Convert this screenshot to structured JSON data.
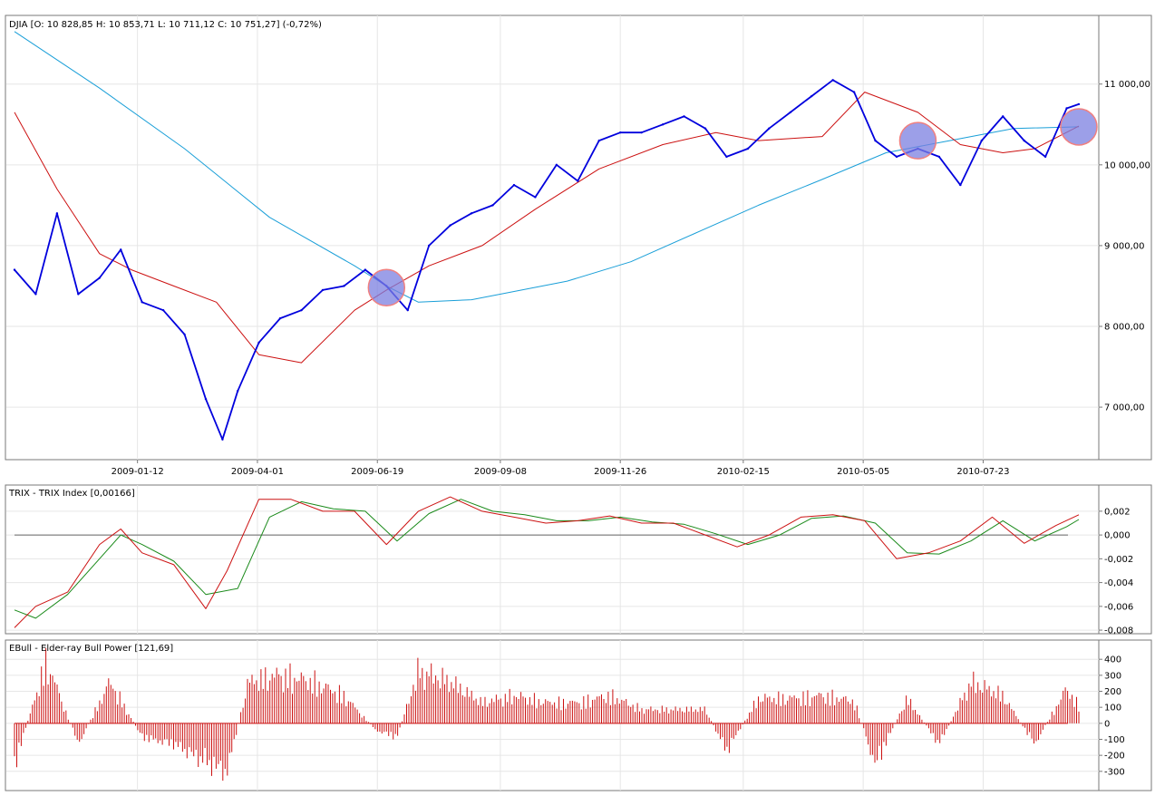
{
  "chart_data": [
    {
      "type": "line",
      "subtype": "candlestick",
      "title": "DJIA [O: 10 828,85  H: 10 853,71  L: 10 711,12  C: 10 751,27] (-0,72%)",
      "x_tick_labels": [
        "2009-01-12",
        "2009-04-01",
        "2009-06-19",
        "2009-09-08",
        "2009-11-26",
        "2010-02-15",
        "2010-05-05",
        "2010-07-23"
      ],
      "y_tick_labels": [
        "7 000,00",
        "8 000,00",
        "9 000,00",
        "10 000,00",
        "11 000,00"
      ],
      "y_ticks": [
        7000,
        8000,
        9000,
        10000,
        11000
      ],
      "ylim": [
        6350,
        11850
      ],
      "xlim": [
        "2008-10-23",
        "2010-09-30"
      ],
      "grid": true,
      "colors": {
        "price": "#0000dd",
        "ma_slow": "#1a9fd8",
        "ma_fast": "#cc1111",
        "highlight": "#7b7fe0"
      },
      "series": [
        {
          "role": "price",
          "x": [
            "2008-10-23",
            "2008-11-06",
            "2008-11-20",
            "2008-12-04",
            "2008-12-18",
            "2009-01-01",
            "2009-01-15",
            "2009-01-29",
            "2009-02-12",
            "2009-02-26",
            "2009-03-09",
            "2009-03-19",
            "2009-04-02",
            "2009-04-16",
            "2009-04-30",
            "2009-05-14",
            "2009-05-28",
            "2009-06-11",
            "2009-06-25",
            "2009-07-09",
            "2009-07-23",
            "2009-08-06",
            "2009-08-20",
            "2009-09-03",
            "2009-09-17",
            "2009-10-01",
            "2009-10-15",
            "2009-10-29",
            "2009-11-12",
            "2009-11-26",
            "2009-12-10",
            "2009-12-24",
            "2010-01-07",
            "2010-01-21",
            "2010-02-04",
            "2010-02-18",
            "2010-03-04",
            "2010-03-18",
            "2010-04-01",
            "2010-04-15",
            "2010-04-29",
            "2010-05-13",
            "2010-05-27",
            "2010-06-10",
            "2010-06-24",
            "2010-07-08",
            "2010-07-22",
            "2010-08-05",
            "2010-08-19",
            "2010-09-02",
            "2010-09-16",
            "2010-09-24"
          ],
          "values": [
            8700,
            8400,
            9400,
            8400,
            8600,
            8950,
            8300,
            8200,
            7900,
            7100,
            6600,
            7200,
            7800,
            8100,
            8200,
            8450,
            8500,
            8700,
            8500,
            8200,
            9000,
            9250,
            9400,
            9500,
            9750,
            9600,
            10000,
            9800,
            10300,
            10400,
            10400,
            10500,
            10600,
            10450,
            10100,
            10200,
            10450,
            10650,
            10850,
            11050,
            10900,
            10300,
            10100,
            10200,
            10100,
            9750,
            10300,
            10600,
            10300,
            10100,
            10700,
            10751
          ]
        },
        {
          "role": "ma_slow",
          "x": [
            "2008-10-23",
            "2008-12-18",
            "2009-02-12",
            "2009-04-09",
            "2009-06-04",
            "2009-06-25",
            "2009-07-16",
            "2009-08-20",
            "2009-10-22",
            "2009-12-03",
            "2010-01-14",
            "2010-02-25",
            "2010-04-08",
            "2010-05-20",
            "2010-07-01",
            "2010-08-12",
            "2010-09-24"
          ],
          "values": [
            11650,
            10950,
            10200,
            9350,
            8750,
            8500,
            8300,
            8330,
            8560,
            8800,
            9150,
            9500,
            9820,
            10150,
            10300,
            10450,
            10470
          ]
        },
        {
          "role": "ma_fast",
          "x": [
            "2008-10-23",
            "2008-11-20",
            "2008-12-18",
            "2009-01-08",
            "2009-02-05",
            "2009-03-05",
            "2009-04-02",
            "2009-04-30",
            "2009-06-04",
            "2009-06-25",
            "2009-07-23",
            "2009-08-27",
            "2009-10-01",
            "2009-11-12",
            "2009-12-24",
            "2010-01-28",
            "2010-02-25",
            "2010-04-08",
            "2010-05-06",
            "2010-06-10",
            "2010-07-08",
            "2010-08-05",
            "2010-08-26",
            "2010-09-24"
          ],
          "values": [
            10650,
            9700,
            8900,
            8700,
            8500,
            8300,
            7650,
            7550,
            8200,
            8450,
            8750,
            9000,
            9450,
            9950,
            10250,
            10400,
            10300,
            10350,
            10900,
            10650,
            10250,
            10150,
            10200,
            10480
          ]
        }
      ]
    },
    {
      "type": "line",
      "title": "TRIX - TRIX Index [0,00166]",
      "y_tick_labels": [
        "-0,008",
        "-0,006",
        "-0,004",
        "-0,002",
        "0,000",
        "0,002"
      ],
      "y_ticks": [
        -0.008,
        -0.006,
        -0.004,
        -0.002,
        0.0,
        0.002
      ],
      "ylim": [
        -0.0083,
        0.0042
      ],
      "zero_line": 0.0,
      "colors": {
        "trix": "#cc1111",
        "signal": "#1a8a1a",
        "zero": "#666666"
      },
      "series": [
        {
          "role": "trix",
          "x": [
            "2008-10-23",
            "2008-11-06",
            "2008-11-27",
            "2008-12-18",
            "2009-01-01",
            "2009-01-15",
            "2009-02-05",
            "2009-02-26",
            "2009-03-12",
            "2009-04-02",
            "2009-04-23",
            "2009-05-14",
            "2009-06-04",
            "2009-06-25",
            "2009-07-16",
            "2009-08-06",
            "2009-08-27",
            "2009-09-17",
            "2009-10-08",
            "2009-10-29",
            "2009-11-19",
            "2009-12-10",
            "2009-12-31",
            "2010-01-21",
            "2010-02-11",
            "2010-03-04",
            "2010-03-25",
            "2010-04-15",
            "2010-05-06",
            "2010-05-27",
            "2010-06-17",
            "2010-07-08",
            "2010-07-29",
            "2010-08-19",
            "2010-09-09",
            "2010-09-24"
          ],
          "values": [
            -0.0078,
            -0.006,
            -0.0048,
            -0.0008,
            0.0005,
            -0.0015,
            -0.0025,
            -0.0062,
            -0.003,
            0.003,
            0.003,
            0.002,
            0.002,
            -0.0008,
            0.002,
            0.0032,
            0.002,
            0.0015,
            0.001,
            0.0012,
            0.0016,
            0.001,
            0.001,
            0.0,
            -0.001,
            0.0,
            0.0015,
            0.0017,
            0.0012,
            -0.002,
            -0.0015,
            -0.0005,
            0.0015,
            -0.0007,
            0.0008,
            0.0017
          ]
        },
        {
          "role": "signal",
          "x": [
            "2008-10-23",
            "2008-11-06",
            "2008-11-27",
            "2008-12-18",
            "2009-01-01",
            "2009-01-15",
            "2009-02-05",
            "2009-02-26",
            "2009-03-19",
            "2009-04-09",
            "2009-04-30",
            "2009-05-21",
            "2009-06-11",
            "2009-07-02",
            "2009-07-23",
            "2009-08-13",
            "2009-09-03",
            "2009-09-24",
            "2009-10-15",
            "2009-11-05",
            "2009-11-26",
            "2009-12-17",
            "2010-01-07",
            "2010-01-28",
            "2010-02-18",
            "2010-03-11",
            "2010-04-01",
            "2010-04-22",
            "2010-05-13",
            "2010-06-03",
            "2010-06-24",
            "2010-07-15",
            "2010-08-05",
            "2010-08-26",
            "2010-09-16",
            "2010-09-24"
          ],
          "values": [
            -0.0063,
            -0.007,
            -0.005,
            -0.002,
            0.0,
            -0.0008,
            -0.0022,
            -0.005,
            -0.0045,
            0.0015,
            0.0028,
            0.0022,
            0.002,
            -0.0005,
            0.0018,
            0.003,
            0.002,
            0.0017,
            0.0012,
            0.0012,
            0.0015,
            0.0011,
            0.0009,
            0.0001,
            -0.0008,
            0.0,
            0.0014,
            0.0016,
            0.001,
            -0.0015,
            -0.0016,
            -0.0005,
            0.0012,
            -0.0005,
            0.0007,
            0.0013
          ]
        }
      ]
    },
    {
      "type": "bar",
      "title": "EBull - Elder-ray Bull Power [121,69]",
      "y_tick_labels": [
        "-300",
        "-200",
        "-100",
        "0",
        "100",
        "200",
        "300",
        "400"
      ],
      "y_ticks": [
        -300,
        -200,
        -100,
        0,
        100,
        200,
        300,
        400
      ],
      "ylim": [
        -420,
        520
      ],
      "colors": {
        "bars": "#cc1111"
      },
      "x": [
        "2008-10-23",
        "2008-11-13",
        "2008-12-04",
        "2008-12-25",
        "2009-01-15",
        "2009-02-05",
        "2009-02-26",
        "2009-03-12",
        "2009-03-26",
        "2009-04-16",
        "2009-05-07",
        "2009-05-28",
        "2009-06-18",
        "2009-07-02",
        "2009-07-16",
        "2009-08-06",
        "2009-08-27",
        "2009-09-17",
        "2009-10-08",
        "2009-10-29",
        "2009-11-19",
        "2009-12-10",
        "2009-12-31",
        "2010-01-21",
        "2010-02-04",
        "2010-02-25",
        "2010-03-18",
        "2010-04-08",
        "2010-04-29",
        "2010-05-13",
        "2010-06-03",
        "2010-06-24",
        "2010-07-15",
        "2010-08-05",
        "2010-08-26",
        "2010-09-16",
        "2010-09-24"
      ],
      "values": [
        -300,
        450,
        -150,
        300,
        -100,
        -150,
        -280,
        -350,
        300,
        350,
        300,
        200,
        -50,
        -100,
        380,
        300,
        150,
        200,
        150,
        150,
        200,
        100,
        100,
        100,
        -200,
        180,
        180,
        200,
        160,
        -300,
        180,
        -150,
        300,
        200,
        -150,
        250,
        122
      ]
    }
  ]
}
